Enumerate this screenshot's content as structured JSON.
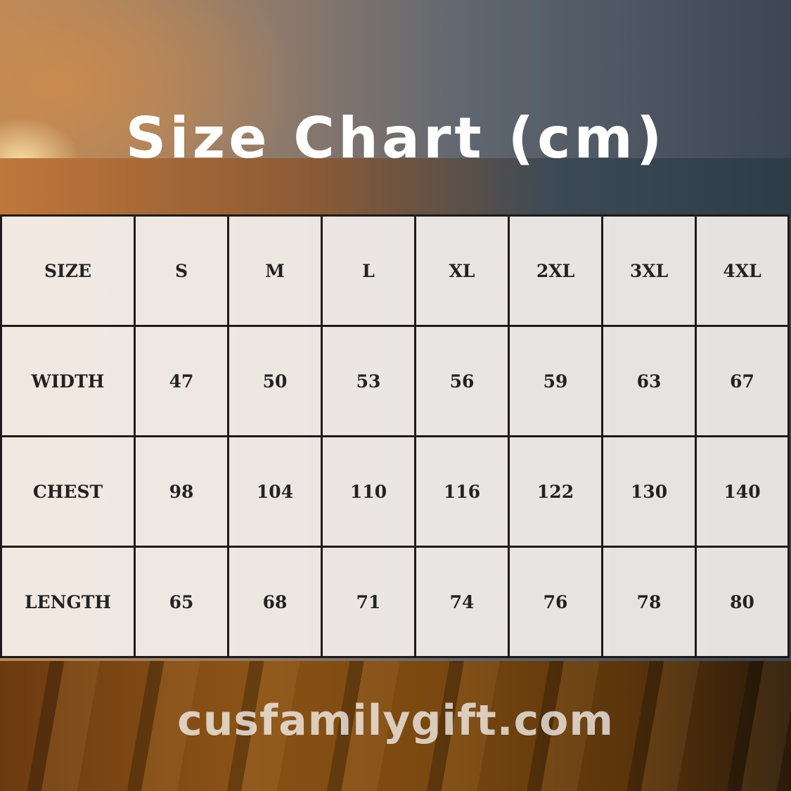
{
  "title": "Size Chart (cm)",
  "table": {
    "header": [
      "SIZE",
      "S",
      "M",
      "L",
      "XL",
      "2XL",
      "3XL",
      "4XL"
    ],
    "rows": [
      {
        "label": "WIDTH",
        "values": [
          "47",
          "50",
          "53",
          "56",
          "59",
          "63",
          "67"
        ]
      },
      {
        "label": "CHEST",
        "values": [
          "98",
          "104",
          "110",
          "116",
          "122",
          "130",
          "140"
        ]
      },
      {
        "label": "LENGTH",
        "values": [
          "65",
          "68",
          "71",
          "74",
          "76",
          "78",
          "80"
        ]
      }
    ]
  },
  "watermark": "cusfamilygift.com"
}
